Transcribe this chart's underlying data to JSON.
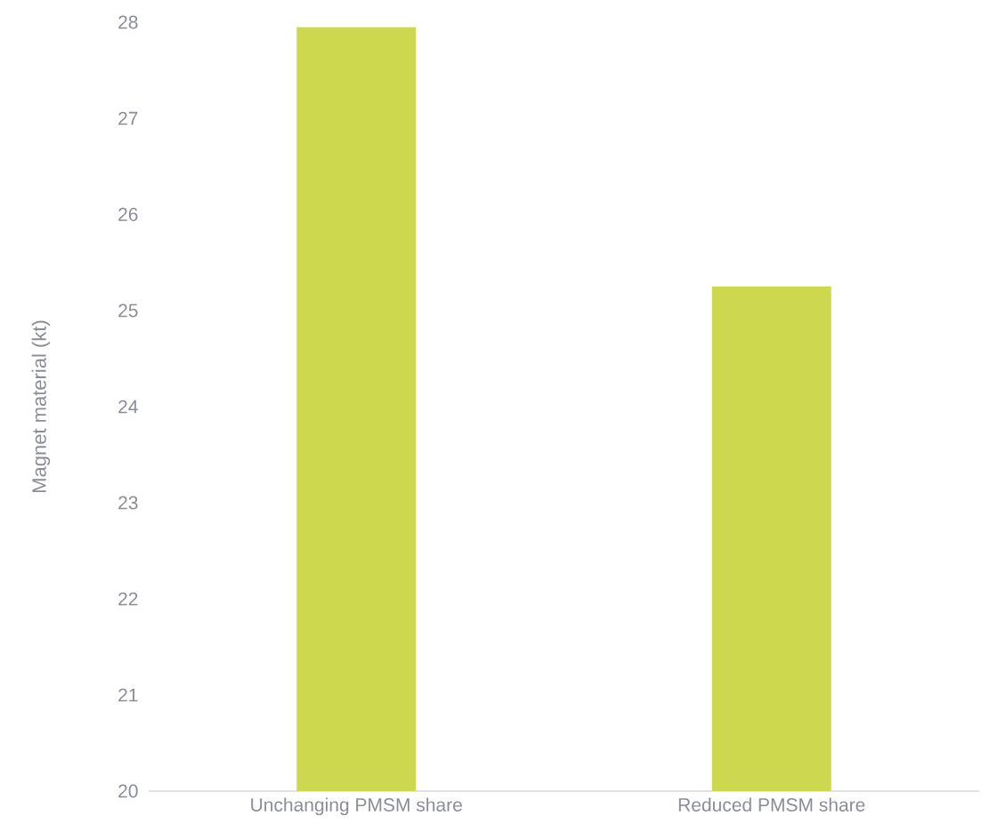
{
  "chart_data": {
    "type": "bar",
    "ylabel": "Magnet material (kt)",
    "categories": [
      "Unchanging PMSM share",
      "Reduced PMSM share"
    ],
    "values": [
      27.95,
      25.25
    ],
    "color": "#cdd84f",
    "ylim": [
      20,
      28
    ],
    "yticks": [
      20,
      21,
      22,
      23,
      24,
      25,
      26,
      27,
      28
    ]
  }
}
